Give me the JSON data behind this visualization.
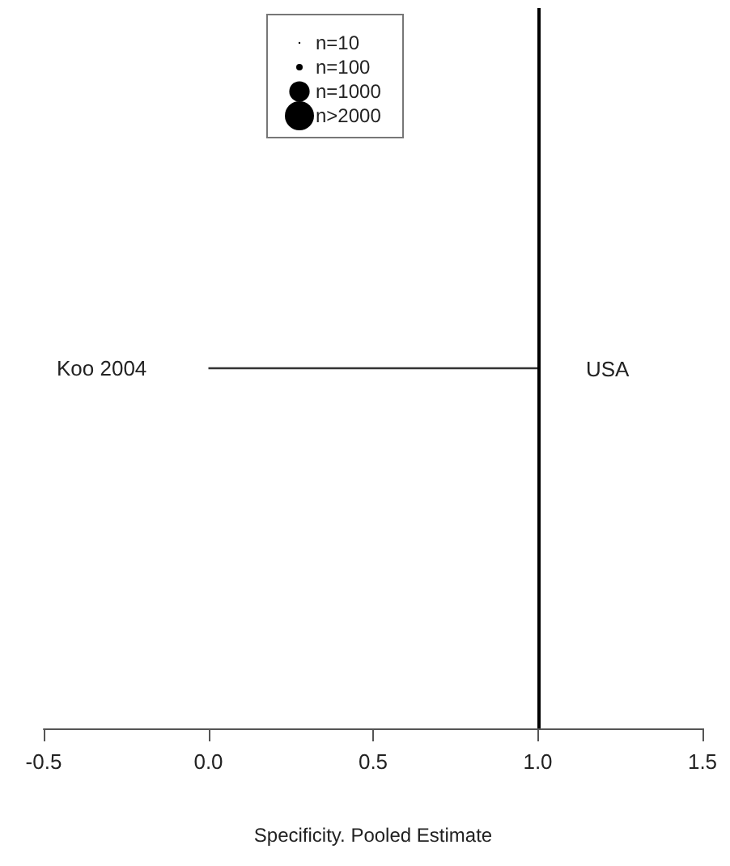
{
  "chart_data": {
    "type": "bar",
    "orientation": "horizontal",
    "xlabel": "Specificity. Pooled Estimate",
    "categories": [
      "Koo 2004"
    ],
    "values": [
      1
    ],
    "base": [
      0
    ],
    "color": "#333333",
    "xlim": [
      -0.5,
      1.5
    ],
    "xticks": [
      {
        "value": -0.5,
        "label": "-0.5"
      },
      {
        "value": 0,
        "label": "0.0"
      },
      {
        "value": 0.5,
        "label": "0.5"
      },
      {
        "value": 1,
        "label": "1.0"
      },
      {
        "value": 1.5,
        "label": "1.5"
      }
    ],
    "ref_lines": [
      {
        "axis": "x",
        "value": 1
      }
    ],
    "annotations": [
      "USA",
      "n=10",
      "n=100",
      "n=1000",
      "n>2000"
    ],
    "grid": false
  }
}
